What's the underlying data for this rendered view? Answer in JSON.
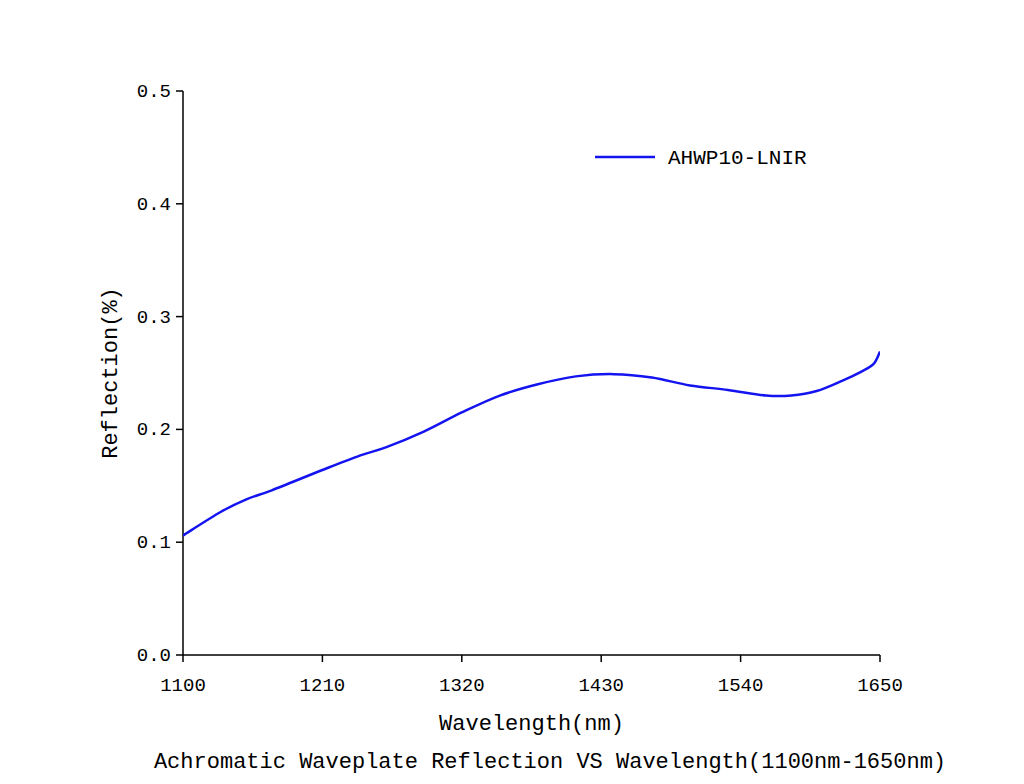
{
  "chart_data": {
    "type": "line",
    "title": "Achromatic Waveplate Reflection VS Wavelength(1100nm-1650nm)",
    "x_label": "Wavelength(nm)",
    "y_label": "Reflection(%)",
    "x": [
      1100,
      1130,
      1150,
      1170,
      1210,
      1240,
      1260,
      1290,
      1320,
      1350,
      1380,
      1410,
      1440,
      1470,
      1500,
      1530,
      1560,
      1580,
      1600,
      1620,
      1635,
      1645,
      1650
    ],
    "series": [
      {
        "name": "AHWP10-LNIR",
        "color": "#1414f0",
        "values": [
          0.106,
          0.127,
          0.138,
          0.146,
          0.164,
          0.177,
          0.184,
          0.198,
          0.215,
          0.23,
          0.24,
          0.247,
          0.249,
          0.246,
          0.239,
          0.235,
          0.23,
          0.23,
          0.234,
          0.243,
          0.251,
          0.258,
          0.269
        ]
      }
    ],
    "xlim": [
      1100,
      1650
    ],
    "ylim": [
      0,
      0.5
    ],
    "xticks": [
      1100,
      1210,
      1320,
      1430,
      1540,
      1650
    ],
    "yticks": [
      {
        "value": 0,
        "label": "0.0"
      },
      {
        "value": 0.1,
        "label": "0.1"
      },
      {
        "value": 0.2,
        "label": "0.2"
      },
      {
        "value": 0.3,
        "label": "0.3"
      },
      {
        "value": 0.4,
        "label": "0.4"
      },
      {
        "value": 0.5,
        "label": "0.5"
      }
    ],
    "grid": false,
    "legend": "top-right"
  }
}
